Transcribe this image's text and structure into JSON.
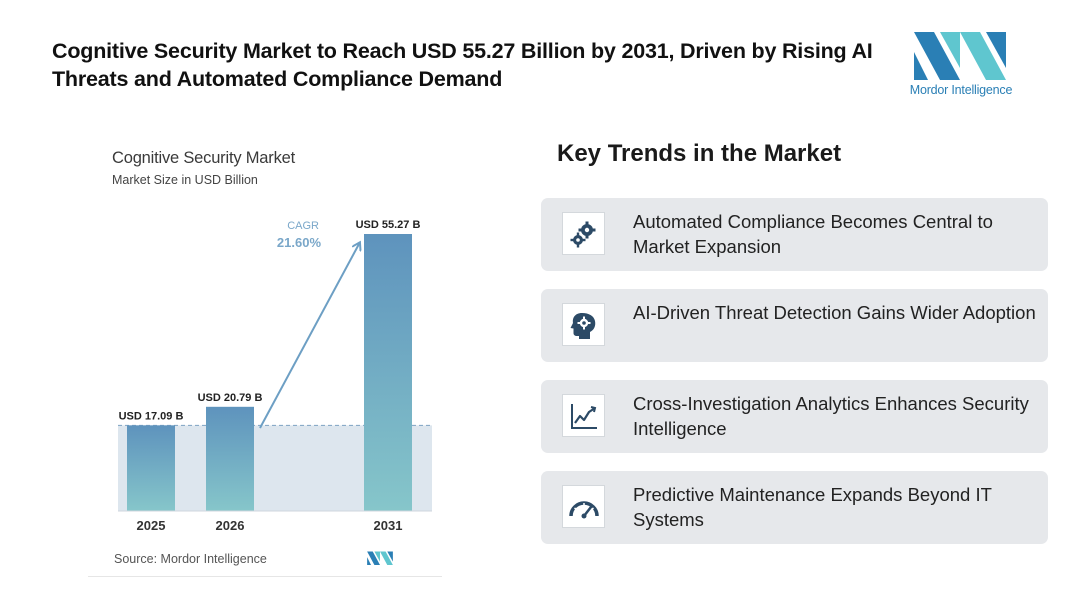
{
  "headline": "Cognitive Security Market to Reach USD 55.27 Billion by 2031, Driven by Rising AI Threats and Automated Compliance Demand",
  "brand": {
    "name": "Mordor Intelligence",
    "colors": {
      "dark": "#2a7fb5",
      "light": "#5fc6cf"
    }
  },
  "chart_data": {
    "type": "bar",
    "title": "Cognitive Security Market",
    "subtitle": "Market Size in USD Billion",
    "categories": [
      "2025",
      "2026",
      "2031"
    ],
    "values": [
      17.09,
      20.79,
      55.27
    ],
    "value_labels": [
      "USD 17.09 B",
      "USD 20.79 B",
      "USD 55.27 B"
    ],
    "cagr_label": "CAGR",
    "cagr_value": "21.60%",
    "source": "Source: Mordor Intelligence",
    "grid": false,
    "colors": {
      "bar_top": "#5e93bd",
      "bar_bottom": "#86c6ca",
      "band": "#dde6ee",
      "arrow": "#6d9fc4"
    }
  },
  "trends": {
    "title": "Key Trends in the Market",
    "items": [
      {
        "label": "Automated Compliance Becomes Central to Market Expansion",
        "icon": "gears-icon"
      },
      {
        "label": "AI-Driven Threat Detection Gains Wider Adoption",
        "icon": "brain-gear-icon"
      },
      {
        "label": "Cross-Investigation Analytics Enhances Security Intelligence",
        "icon": "line-chart-icon"
      },
      {
        "label": "Predictive Maintenance Expands Beyond IT Systems",
        "icon": "gauge-icon"
      }
    ]
  }
}
